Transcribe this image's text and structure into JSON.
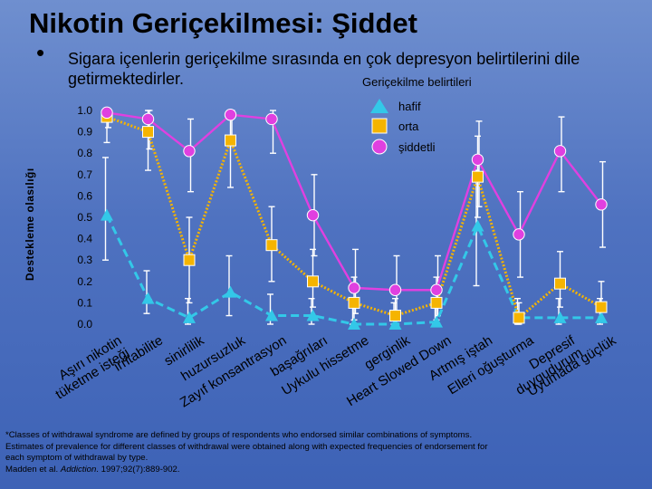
{
  "slide": {
    "title": "Nikotin Geriçekilmesi: Şiddet",
    "bullet": "•",
    "subtitle": "Sigara içenlerin geriçekilme sırasında en çok depresyon belirtilerini dile getirmektedirler.",
    "footnote_lines": [
      "*Classes of withdrawal syndrome are defined by groups of respondents who endorsed similar combinations of symptoms.",
      "Estimates of prevalence for different classes of withdrawal were obtained along with expected frequencies of endorsement for",
      "each symptom of withdrawal by type."
    ],
    "citation_prefix": "Madden et al. ",
    "citation_journal": "Addiction",
    "citation_suffix": ". 1997;92(7):889-902."
  },
  "colors": {
    "hafif": "#33c8e8",
    "orta": "#f5b400",
    "siddetli": "#e040e0",
    "error_bar": "#ffffff"
  },
  "chart_data": {
    "type": "line",
    "title": "",
    "xlabel": "",
    "ylabel": "Destekleme olasılığı",
    "ylim": [
      0,
      1.0
    ],
    "yticks": [
      "0.0",
      "0.1",
      "0.2",
      "0.3",
      "0.4",
      "0.5",
      "0.6",
      "0.7",
      "0.8",
      "0.9",
      "1.0"
    ],
    "legend": {
      "title": "Geriçekilme belirtileri",
      "position": "top-right"
    },
    "categories": [
      "Aşırı nikotin tüketme isteği",
      "irritabilite",
      "sinirlilik",
      "huzursuzluk",
      "Zayıf konsantrasyon",
      "başağrıları",
      "Uykulu hissetme",
      "gerginlik",
      "Heart Slowed Down",
      "Artmış iştah",
      "Elleri oğuşturma",
      "Depresif duygudurum",
      "Uyumada güçlük"
    ],
    "category_lines": [
      [
        "Aşırı nikotin",
        "tüketme isteği"
      ],
      [
        "irritabilite"
      ],
      [
        "sinirlilik"
      ],
      [
        "huzursuzluk"
      ],
      [
        "Zayıf konsantrasyon"
      ],
      [
        "başağrıları"
      ],
      [
        "Uykulu hissetme"
      ],
      [
        "gerginlik"
      ],
      [
        "Heart Slowed Down"
      ],
      [
        "Artmış iştah"
      ],
      [
        "Elleri oğuşturma"
      ],
      [
        "Depresif",
        "duygudurum"
      ],
      [
        "Uyumada güçlük"
      ]
    ],
    "series": [
      {
        "name": "hafif",
        "marker": "triangle",
        "values": [
          0.51,
          0.12,
          0.03,
          0.15,
          0.04,
          0.04,
          0.0,
          0.0,
          0.01,
          0.46,
          0.03,
          0.03,
          0.03
        ],
        "err_low": [
          0.3,
          0.05,
          0.0,
          0.04,
          0.0,
          0.0,
          0.0,
          0.0,
          0.0,
          0.18,
          0.0,
          0.0,
          0.0
        ],
        "err_high": [
          0.78,
          0.25,
          0.12,
          0.32,
          0.14,
          0.12,
          0.1,
          0.1,
          0.12,
          0.72,
          0.12,
          0.12,
          0.12
        ]
      },
      {
        "name": "orta",
        "marker": "square",
        "values": [
          0.97,
          0.9,
          0.3,
          0.86,
          0.37,
          0.2,
          0.1,
          0.04,
          0.1,
          0.69,
          0.03,
          0.19,
          0.08
        ],
        "err_low": [
          0.85,
          0.72,
          0.1,
          0.64,
          0.2,
          0.08,
          0.02,
          0.0,
          0.02,
          0.5,
          0.0,
          0.08,
          0.01
        ],
        "err_high": [
          1.0,
          1.0,
          0.5,
          1.0,
          0.55,
          0.35,
          0.22,
          0.12,
          0.22,
          0.88,
          0.1,
          0.34,
          0.2
        ]
      },
      {
        "name": "şiddetli",
        "marker": "circle",
        "values": [
          0.99,
          0.96,
          0.81,
          0.98,
          0.96,
          0.51,
          0.17,
          0.16,
          0.16,
          0.77,
          0.42,
          0.81,
          0.56
        ],
        "err_low": [
          0.92,
          0.82,
          0.62,
          0.88,
          0.8,
          0.32,
          0.05,
          0.04,
          0.04,
          0.55,
          0.22,
          0.62,
          0.36
        ],
        "err_high": [
          1.0,
          1.0,
          0.96,
          1.0,
          1.0,
          0.7,
          0.35,
          0.32,
          0.32,
          0.95,
          0.62,
          0.97,
          0.76
        ]
      }
    ]
  }
}
